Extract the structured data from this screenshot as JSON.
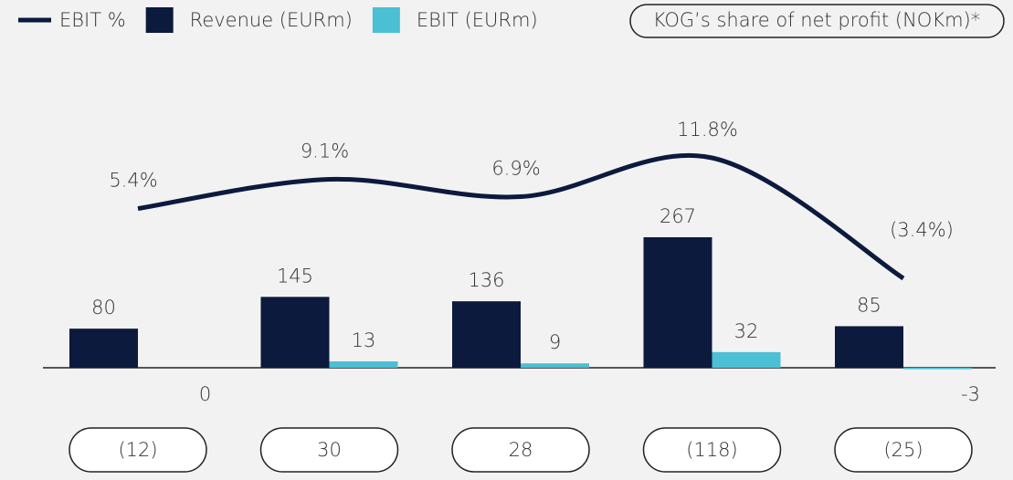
{
  "chart_data": {
    "type": "bar",
    "categories": [
      null,
      null,
      null,
      null,
      null
    ],
    "series": [
      {
        "name": "EBIT %",
        "type": "line",
        "color": "#0b1a3d",
        "values": [
          5.4,
          9.1,
          6.9,
          11.8,
          -3.4
        ],
        "value_labels": [
          "5.4%",
          "9.1%",
          "6.9%",
          "11.8%",
          "(3.4%)"
        ]
      },
      {
        "name": "Revenue (EURm)",
        "type": "bar",
        "color": "#0b1a3d",
        "values": [
          80,
          145,
          136,
          267,
          85
        ]
      },
      {
        "name": "EBIT (EURm)",
        "type": "bar",
        "color": "#4bbfd3",
        "values": [
          0,
          13,
          9,
          32,
          -3
        ]
      }
    ],
    "net_profit": {
      "title": "KOG’s share of net profit (NOKm)*",
      "values": [
        -12,
        30,
        28,
        -118,
        -25
      ],
      "value_labels": [
        "(12)",
        "30",
        "28",
        "(118)",
        "(25)"
      ]
    }
  }
}
